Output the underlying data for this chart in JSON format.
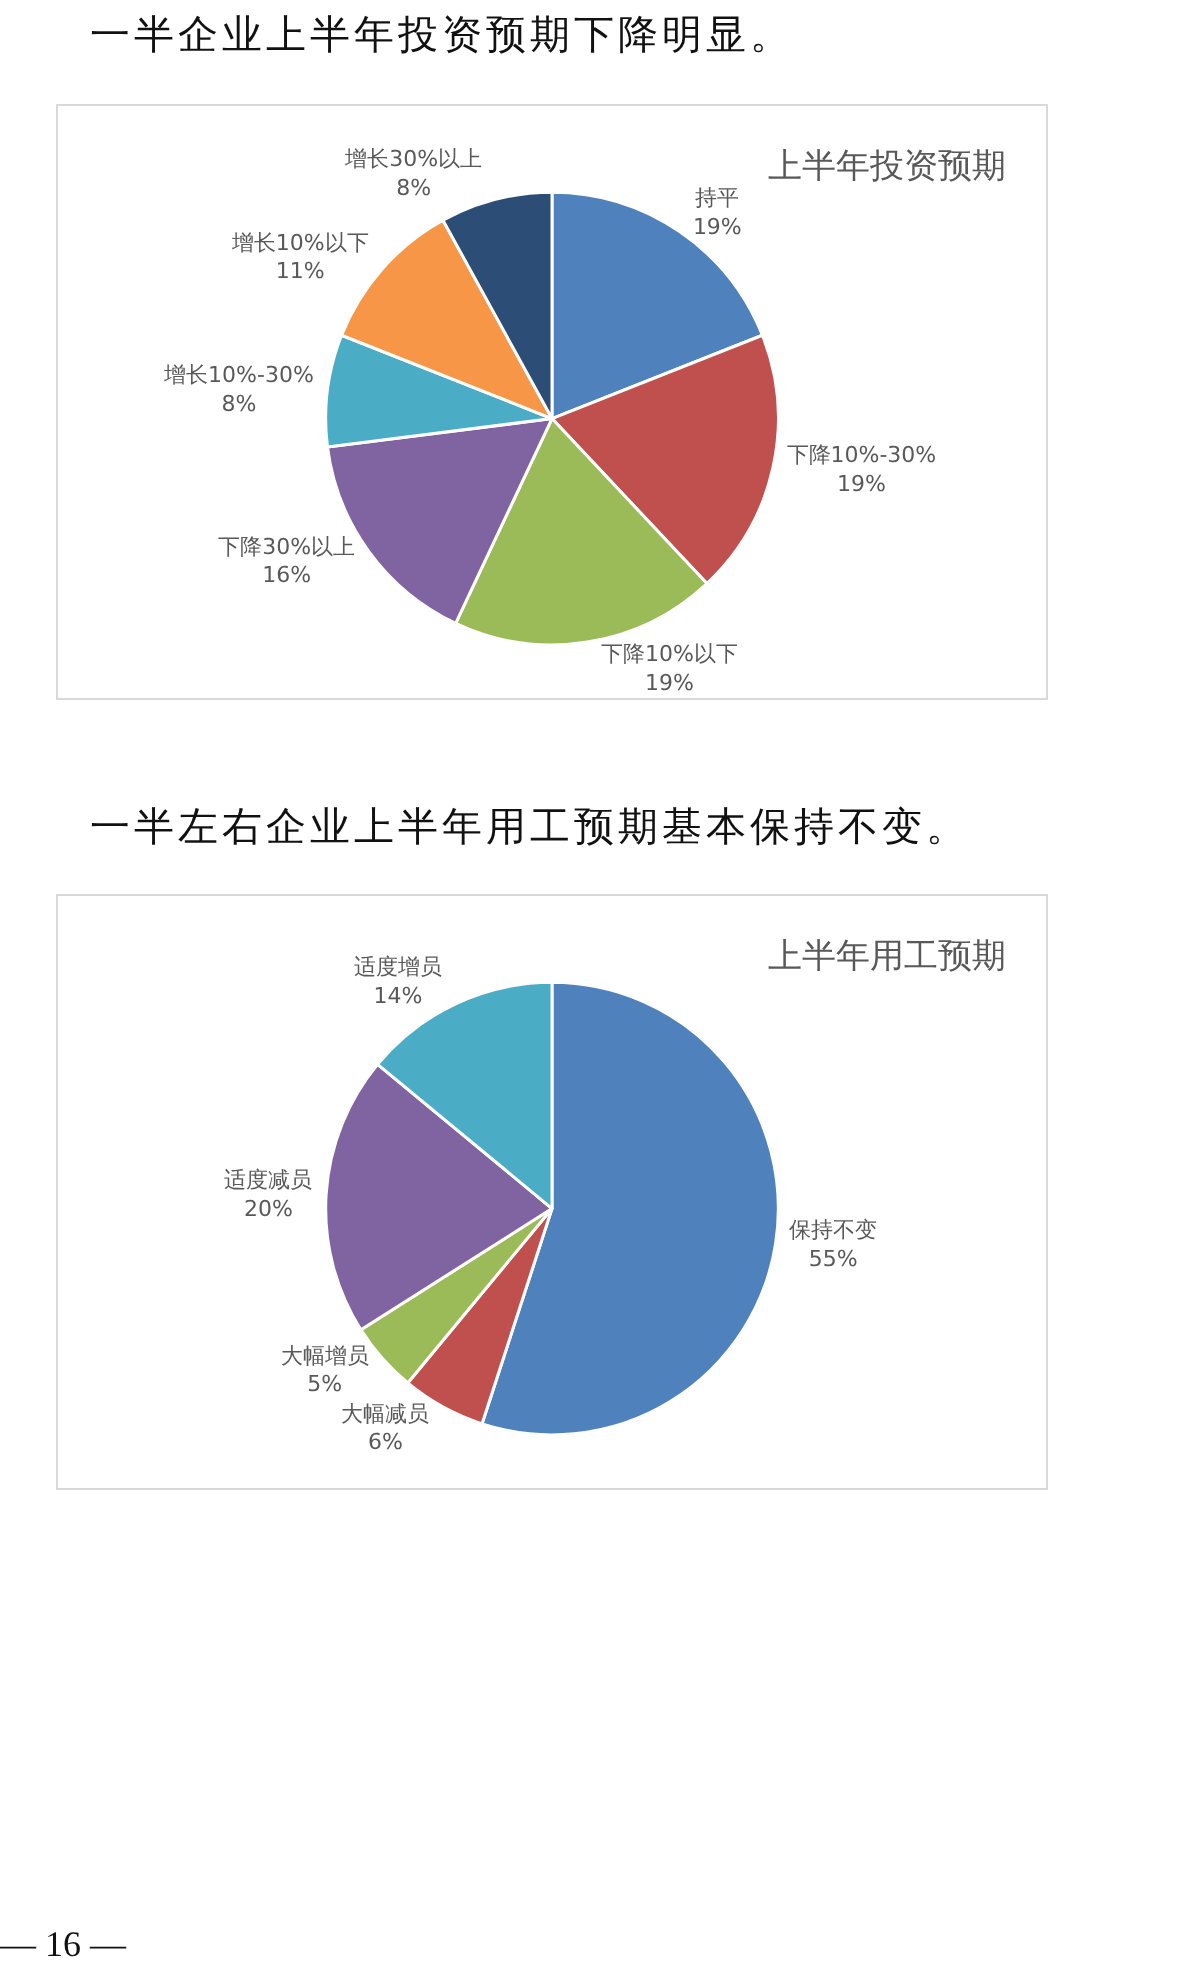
{
  "chart_data": [
    {
      "type": "pie",
      "title": "上半年投资预期",
      "annotations": [
        "一半企业上半年投资预期下降明显。"
      ],
      "categories": [
        "持平",
        "下降10%-30%",
        "下降10%以下",
        "下降30%以上",
        "增长10%-30%",
        "增长10%以下",
        "增长30%以上"
      ],
      "values": [
        19,
        19,
        19,
        16,
        8,
        11,
        8
      ],
      "value_labels": [
        "19%",
        "19%",
        "19%",
        "16%",
        "8%",
        "11%",
        "8%"
      ],
      "colors": [
        "#4f81bd",
        "#c0504d",
        "#9bbb59",
        "#8064a2",
        "#4bacc6",
        "#f79646",
        "#2c4d75"
      ],
      "legend": false
    },
    {
      "type": "pie",
      "title": "上半年用工预期",
      "annotations": [
        "一半左右企业上半年用工预期基本保持不变。",
        "— 16 —"
      ],
      "categories": [
        "保持不变",
        "大幅减员",
        "大幅增员",
        "适度减员",
        "适度增员"
      ],
      "values": [
        55,
        6,
        5,
        20,
        14
      ],
      "value_labels": [
        "55%",
        "6%",
        "5%",
        "20%",
        "14%"
      ],
      "colors": [
        "#4f81bd",
        "#c0504d",
        "#9bbb59",
        "#8064a2",
        "#4bacc6"
      ],
      "legend": false
    }
  ]
}
